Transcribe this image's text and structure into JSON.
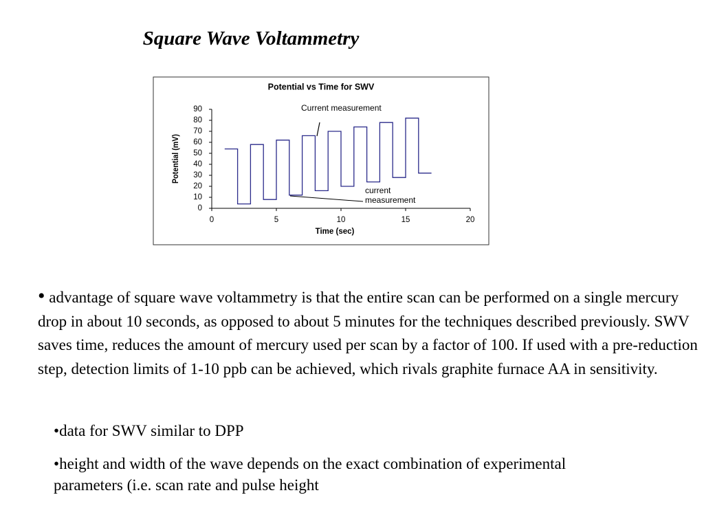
{
  "slide": {
    "title": "Square Wave Voltammetry",
    "paragraph": "advantage of square wave voltammetry is that the entire scan can be performed on a single mercury drop in about 10 seconds, as opposed to about 5 minutes for the techniques described previously. SWV saves time, reduces the amount of mercury used per scan by a factor of 100. If used with a pre-reduction step, detection limits of 1-10 ppb can be achieved, which rivals graphite furnace AA in sensitivity.",
    "sub_bullets": [
      "data for SWV similar to DPP",
      "height and width of the wave depends on the exact combination of experimental parameters (i.e. scan rate and pulse height"
    ]
  },
  "chart_data": {
    "type": "line",
    "title": "Potential vs Time for SWV",
    "x_label": "Time (sec)",
    "y_label": "Potential (mV)",
    "annotations": [
      {
        "text": "Current measurement"
      },
      {
        "lines": [
          "current",
          "measurement"
        ]
      }
    ],
    "x": [
      1,
      2,
      2,
      3,
      3,
      4,
      4,
      5,
      5,
      6,
      6,
      7,
      7,
      8,
      8,
      9,
      9,
      10,
      10,
      11,
      11,
      12,
      12,
      13,
      13,
      14,
      14,
      15,
      15,
      16,
      16,
      17
    ],
    "values": [
      54,
      54,
      4,
      4,
      58,
      58,
      8,
      8,
      62,
      62,
      12,
      12,
      66,
      66,
      16,
      16,
      70,
      70,
      20,
      20,
      74,
      74,
      24,
      24,
      78,
      78,
      28,
      28,
      82,
      82,
      32,
      32
    ],
    "color": "#2a2a8a",
    "xlim": [
      0,
      20
    ],
    "xticks": [
      0,
      5,
      10,
      15,
      20
    ],
    "ylim": [
      0,
      90
    ],
    "yticks": [
      0,
      10,
      20,
      30,
      40,
      50,
      60,
      70,
      80,
      90
    ]
  }
}
